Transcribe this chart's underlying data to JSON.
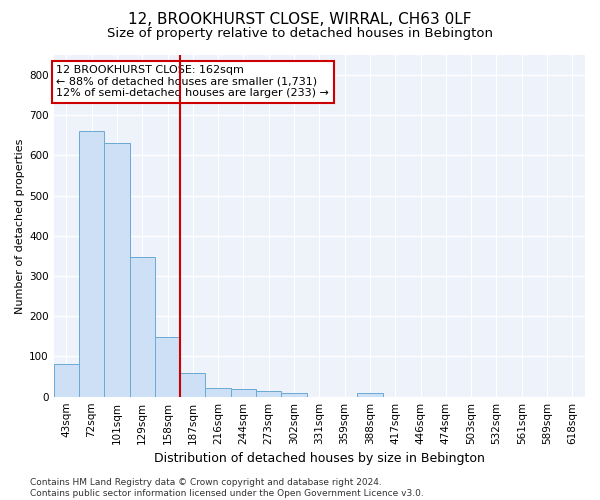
{
  "title": "12, BROOKHURST CLOSE, WIRRAL, CH63 0LF",
  "subtitle": "Size of property relative to detached houses in Bebington",
  "xlabel": "Distribution of detached houses by size in Bebington",
  "ylabel": "Number of detached properties",
  "categories": [
    "43sqm",
    "72sqm",
    "101sqm",
    "129sqm",
    "158sqm",
    "187sqm",
    "216sqm",
    "244sqm",
    "273sqm",
    "302sqm",
    "331sqm",
    "359sqm",
    "388sqm",
    "417sqm",
    "446sqm",
    "474sqm",
    "503sqm",
    "532sqm",
    "561sqm",
    "589sqm",
    "618sqm"
  ],
  "values": [
    82,
    660,
    630,
    347,
    148,
    58,
    22,
    18,
    13,
    8,
    0,
    0,
    8,
    0,
    0,
    0,
    0,
    0,
    0,
    0,
    0
  ],
  "bar_color": "#cde0f5",
  "bar_edge_color": "#6aaad4",
  "reference_line_x": 4.5,
  "reference_line_color": "#cc0000",
  "annotation_box_text": "12 BROOKHURST CLOSE: 162sqm\n← 88% of detached houses are smaller (1,731)\n12% of semi-detached houses are larger (233) →",
  "ylim": [
    0,
    850
  ],
  "yticks": [
    0,
    100,
    200,
    300,
    400,
    500,
    600,
    700,
    800
  ],
  "footnote": "Contains HM Land Registry data © Crown copyright and database right 2024.\nContains public sector information licensed under the Open Government Licence v3.0.",
  "background_color": "#eef2fa",
  "grid_color": "#ffffff",
  "title_fontsize": 11,
  "subtitle_fontsize": 9.5,
  "xlabel_fontsize": 9,
  "ylabel_fontsize": 8,
  "tick_fontsize": 7.5,
  "annotation_fontsize": 8,
  "footnote_fontsize": 6.5
}
